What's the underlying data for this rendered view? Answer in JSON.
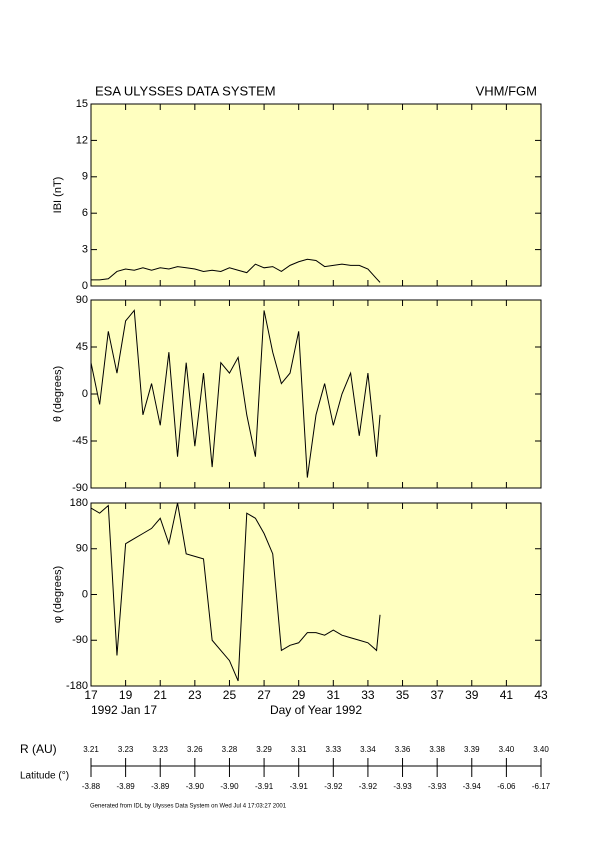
{
  "header": {
    "title": "ESA ULYSSES DATA SYSTEM",
    "instrument": "VHM/FGM"
  },
  "chart_data": [
    {
      "type": "line",
      "ylabel": "IBI (nT)",
      "ylim": [
        0,
        15
      ],
      "yticks": [
        0,
        3,
        6,
        9,
        12,
        15
      ],
      "xlim": [
        17,
        43
      ],
      "xticks": [
        17,
        19,
        21,
        23,
        25,
        27,
        29,
        31,
        33,
        35,
        37,
        39,
        41,
        43
      ],
      "x": [
        17,
        17.5,
        18,
        18.5,
        19,
        19.5,
        20,
        20.5,
        21,
        21.5,
        22,
        22.5,
        23,
        23.5,
        24,
        24.5,
        25,
        25.5,
        26,
        26.5,
        27,
        27.5,
        28,
        28.5,
        29,
        29.5,
        30,
        30.5,
        31,
        31.5,
        32,
        32.5,
        33,
        33.5,
        33.7
      ],
      "series": [
        {
          "color": "#000000",
          "values": [
            0.5,
            0.5,
            0.6,
            1.2,
            1.4,
            1.3,
            1.5,
            1.3,
            1.5,
            1.4,
            1.6,
            1.5,
            1.4,
            1.2,
            1.3,
            1.2,
            1.5,
            1.3,
            1.1,
            1.8,
            1.5,
            1.6,
            1.2,
            1.7,
            2.0,
            2.2,
            2.1,
            1.6,
            1.7,
            1.8,
            1.7,
            1.7,
            1.4,
            0.6,
            0.3
          ]
        }
      ]
    },
    {
      "type": "line",
      "ylabel": "θ (degrees)",
      "ylim": [
        -90,
        90
      ],
      "yticks": [
        -90,
        -45,
        0,
        45,
        90
      ],
      "xlim": [
        17,
        43
      ],
      "xticks": [
        17,
        19,
        21,
        23,
        25,
        27,
        29,
        31,
        33,
        35,
        37,
        39,
        41,
        43
      ],
      "x": [
        17,
        17.5,
        18,
        18.5,
        19,
        19.5,
        20,
        20.5,
        21,
        21.5,
        22,
        22.5,
        23,
        23.5,
        24,
        24.5,
        25,
        25.5,
        26,
        26.5,
        27,
        27.5,
        28,
        28.5,
        29,
        29.5,
        30,
        30.5,
        31,
        31.5,
        32,
        32.5,
        33,
        33.5,
        33.7
      ],
      "series": [
        {
          "color": "#000000",
          "values": [
            30,
            -10,
            60,
            20,
            70,
            80,
            -20,
            10,
            -30,
            40,
            -60,
            30,
            -50,
            20,
            -70,
            30,
            20,
            35,
            -20,
            -60,
            80,
            40,
            10,
            20,
            60,
            -80,
            -20,
            10,
            -30,
            0,
            20,
            -40,
            20,
            -60,
            -20
          ]
        }
      ]
    },
    {
      "type": "line",
      "ylabel": "φ (degrees)",
      "ylim": [
        -180,
        180
      ],
      "yticks": [
        -180,
        -90,
        0,
        90,
        180
      ],
      "xlim": [
        17,
        43
      ],
      "xticks": [
        17,
        19,
        21,
        23,
        25,
        27,
        29,
        31,
        33,
        35,
        37,
        39,
        41,
        43
      ],
      "xlabel": "Day of Year 1992",
      "date_label": "1992 Jan 17",
      "x": [
        17,
        17.5,
        18,
        18.5,
        19,
        19.5,
        20,
        20.5,
        21,
        21.5,
        22,
        22.5,
        23,
        23.5,
        24,
        24.5,
        25,
        25.5,
        26,
        26.5,
        27,
        27.5,
        28,
        28.5,
        29,
        29.5,
        30,
        30.5,
        31,
        31.5,
        32,
        32.5,
        33,
        33.5,
        33.7
      ],
      "series": [
        {
          "color": "#000000",
          "values": [
            170,
            160,
            175,
            -120,
            100,
            110,
            120,
            130,
            150,
            100,
            180,
            80,
            75,
            70,
            -90,
            -110,
            -130,
            -170,
            160,
            150,
            120,
            80,
            -110,
            -100,
            -95,
            -75,
            -75,
            -80,
            -70,
            -80,
            -85,
            -90,
            -95,
            -110,
            -40
          ]
        }
      ]
    }
  ],
  "ephemeris": {
    "r_label": "R (AU)",
    "lat_label": "Latitude (°)",
    "r": [
      "3.21",
      "3.23",
      "3.23",
      "3.26",
      "3.28",
      "3.29",
      "3.31",
      "3.33",
      "3.34",
      "3.36",
      "3.38",
      "3.39",
      "3.40",
      "3.40"
    ],
    "lat": [
      "-3.88",
      "-3.89",
      "-3.89",
      "-3.90",
      "-3.90",
      "-3.91",
      "-3.91",
      "-3.92",
      "-3.92",
      "-3.93",
      "-3.93",
      "-3.94",
      "-6.06",
      "-6.17"
    ]
  },
  "footer": "Generated from IDL by Ulysses Data System on Wed Jul 4 17:03:27 2001"
}
